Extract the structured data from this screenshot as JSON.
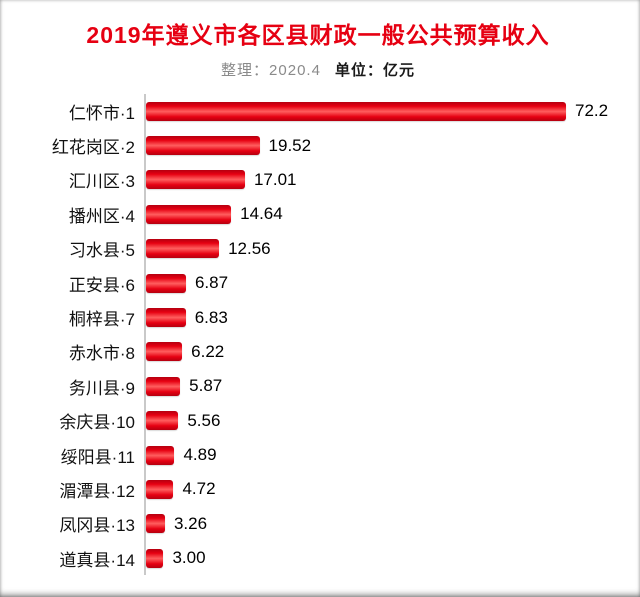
{
  "chart_data": {
    "type": "bar",
    "orientation": "horizontal",
    "title": "2019年遵义市各区县财政一般公共预算收入",
    "subtitle_left": "整理：2020.4",
    "subtitle_right": "单位：亿元",
    "unit": "亿元",
    "categories": [
      "仁怀市·1",
      "红花岗区·2",
      "汇川区·3",
      "播州区·4",
      "习水县·5",
      "正安县·6",
      "桐梓县·7",
      "赤水市·8",
      "务川县·9",
      "余庆县·10",
      "绥阳县·11",
      "湄潭县·12",
      "凤冈县·13",
      "道真县·14"
    ],
    "values": [
      72.2,
      19.52,
      17.01,
      14.64,
      12.56,
      6.87,
      6.83,
      6.22,
      5.87,
      5.56,
      4.89,
      4.72,
      3.26,
      3.0
    ],
    "value_labels": [
      "72.2",
      "19.52",
      "17.01",
      "14.64",
      "12.56",
      "6.87",
      "6.83",
      "6.22",
      "5.87",
      "5.56",
      "4.89",
      "4.72",
      "3.26",
      "3.00"
    ],
    "xlim": [
      0,
      72.2
    ],
    "grid": false,
    "legend": "none",
    "title_color": "#e60012",
    "bar_color": "#e60012",
    "bar_color_light": "#ff5f5f",
    "bar_color_dark": "#b50010",
    "axis_line_color": "#c9c9c9"
  }
}
